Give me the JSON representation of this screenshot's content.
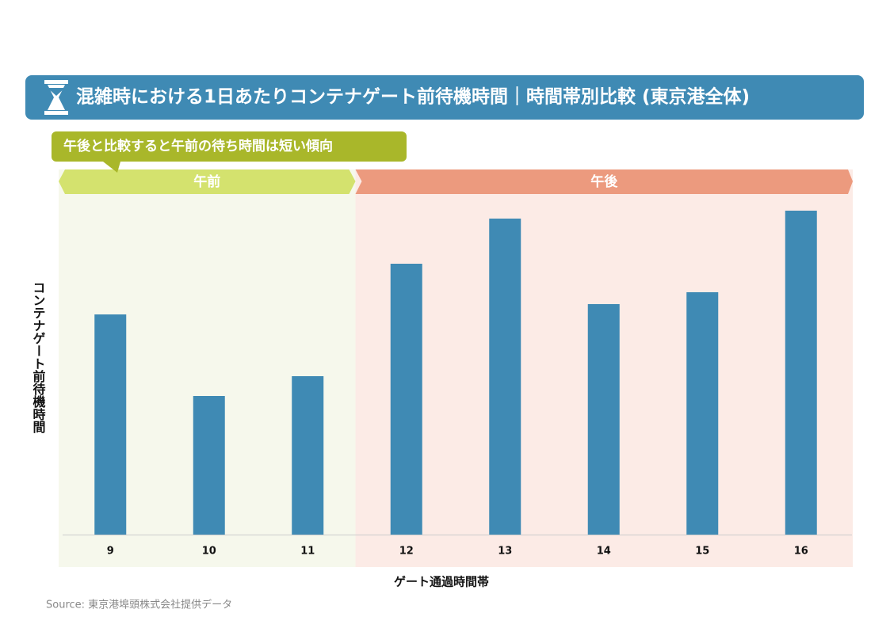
{
  "chart_data": {
    "type": "bar",
    "title": "混雑時における1日あたりコンテナゲート前待機時間｜時間帯別比較 (東京港全体)",
    "callout": "午後と比較すると午前の待ち時間は短い傾向",
    "categories": [
      "9",
      "10",
      "11",
      "12",
      "13",
      "14",
      "15",
      "16"
    ],
    "values": [
      278,
      175,
      200,
      342,
      399,
      291,
      306,
      409
    ],
    "color": "#3f8ab4",
    "ylim": [
      0,
      430
    ],
    "regions": [
      {
        "label": "午前",
        "categories": [
          "9",
          "10",
          "11"
        ],
        "color": "#d4e26e",
        "background": "#f6f8ec"
      },
      {
        "label": "午後",
        "categories": [
          "12",
          "13",
          "14",
          "15",
          "16"
        ],
        "color": "#ec9a7e",
        "background": "#fcebe6"
      }
    ],
    "x_label": "ゲート通過時間帯",
    "y_label": "コンテナゲート前待機時間",
    "source": "Source: 東京港埠頭株式会社提供データ"
  }
}
